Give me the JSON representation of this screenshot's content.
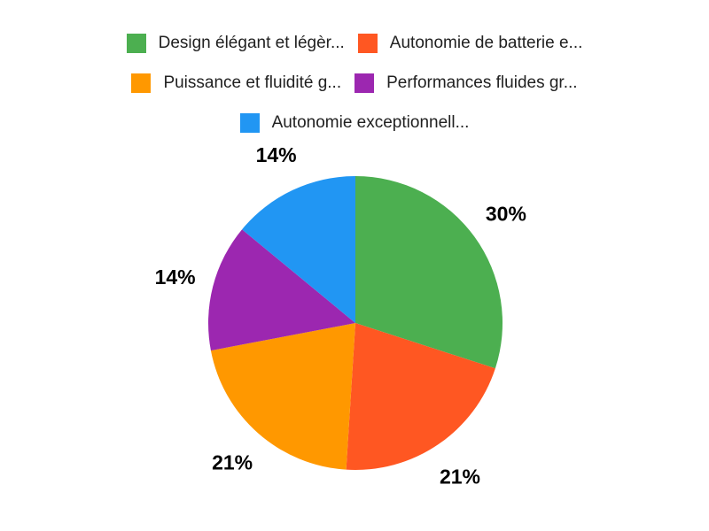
{
  "chart_data": {
    "type": "pie",
    "title": "",
    "labels": [
      "Design élégant et légèr...",
      "Autonomie de batterie e...",
      "Puissance et fluidité g...",
      "Performances fluides gr...",
      "Autonomie exceptionnell..."
    ],
    "values": [
      30,
      21,
      21,
      14,
      14
    ],
    "slice_labels": [
      "30%",
      "21%",
      "21%",
      "14%",
      "14%"
    ],
    "colors": [
      "#4CAF50",
      "#FF5722",
      "#FF9800",
      "#9C27B0",
      "#2196F3"
    ],
    "unit": "%",
    "legend_position": "top",
    "grid": false,
    "background_color": "#ffffff",
    "slice_label_color": "#000000",
    "legend_text_color": "#212121",
    "start_angle_deg": 0,
    "direction": "clockwise"
  }
}
